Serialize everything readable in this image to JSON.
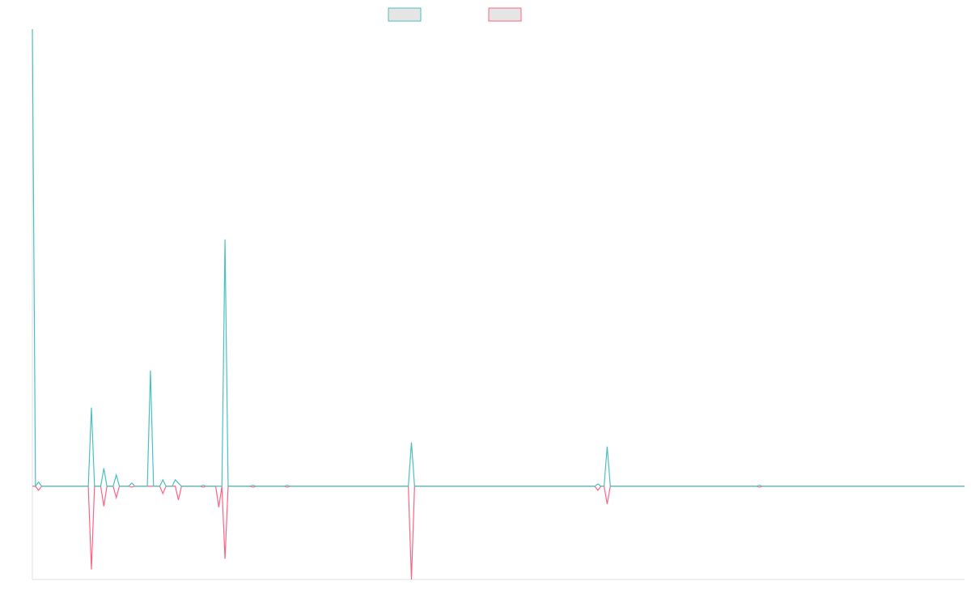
{
  "chart_data": {
    "type": "line",
    "x": [
      0,
      1,
      2,
      3,
      18,
      19,
      20,
      22,
      23,
      24,
      26,
      27,
      28,
      31,
      32,
      33,
      37,
      38,
      39,
      41,
      42,
      43,
      45,
      46,
      47,
      48,
      54,
      55,
      56,
      59,
      60,
      61,
      62,
      63,
      70,
      71,
      72,
      81,
      82,
      83,
      121,
      122,
      123,
      181,
      182,
      183,
      184,
      185,
      186,
      233,
      234,
      235,
      300
    ],
    "xlim": [
      0,
      300
    ],
    "ylim": [
      -20.4,
      100
    ],
    "series": [
      {
        "color": "#ff6384",
        "values": [
          0,
          0,
          -0.9,
          0,
          0,
          -18.2,
          0,
          0,
          -4.4,
          0,
          0,
          -2.5,
          0,
          0,
          -0.2,
          0,
          0,
          0,
          0,
          0,
          -1.6,
          0,
          0,
          0,
          -3.0,
          0,
          0,
          -0.2,
          0,
          0,
          -4.6,
          0,
          -15.9,
          0,
          0,
          -0.2,
          0,
          0,
          -0.2,
          0,
          0,
          -20.4,
          0,
          0,
          -0.9,
          0,
          0,
          -3.9,
          0,
          0,
          -0.2,
          0,
          0
        ]
      },
      {
        "color": "#4bc0c0",
        "values": [
          100,
          0,
          0.9,
          0,
          0,
          17.2,
          0,
          0,
          3.9,
          0,
          0,
          2.5,
          0,
          0,
          0.7,
          0,
          0,
          25.3,
          0,
          0,
          1.4,
          0,
          0,
          1.4,
          0.7,
          0,
          0,
          0.2,
          0,
          0,
          0,
          0,
          54,
          0,
          0,
          0.2,
          0,
          0,
          0.2,
          0,
          0,
          9.6,
          0,
          0,
          0.5,
          0,
          0,
          8.7,
          0,
          0,
          0.2,
          0,
          0
        ]
      }
    ]
  }
}
